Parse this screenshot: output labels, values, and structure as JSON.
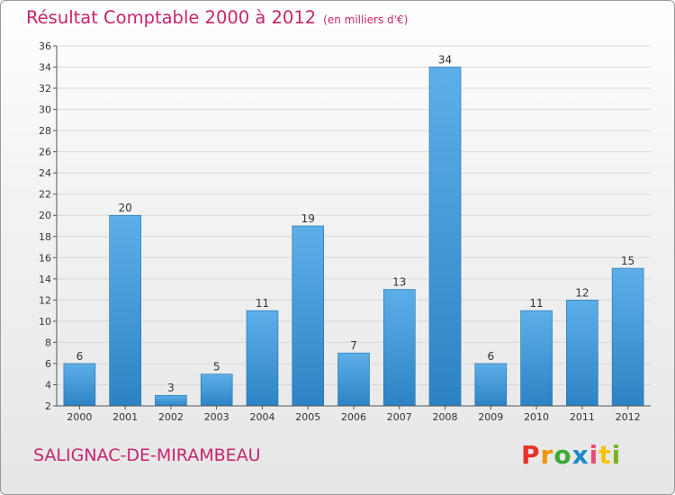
{
  "header": {
    "title": "Résultat Comptable 2000 à 2012",
    "unit_note": "(en milliers d'€)"
  },
  "footer": {
    "town": "SALIGNAC-DE-MIRAMBEAU",
    "logo": "Proxiti",
    "logo_colors": [
      "#e8312a",
      "#f39200",
      "#3aaa35",
      "#1e88c8",
      "#e94e77",
      "#f6c300",
      "#7ab51d"
    ]
  },
  "colors": {
    "bar_top": "#5dafe8",
    "bar_bottom": "#2c83c4",
    "bar_edge": "#1f6fa8",
    "grid": "#d8d8d8",
    "axis": "#555555",
    "title": "#c8246e"
  },
  "chart_data": {
    "type": "bar",
    "categories": [
      "2000",
      "2001",
      "2002",
      "2003",
      "2004",
      "2005",
      "2006",
      "2007",
      "2008",
      "2009",
      "2010",
      "2011",
      "2012"
    ],
    "values": [
      6,
      20,
      3,
      5,
      11,
      19,
      7,
      13,
      34,
      6,
      11,
      12,
      15
    ],
    "data_labels": [
      "6",
      "20",
      "3",
      "5",
      "11",
      "19",
      "7",
      "13",
      "34",
      "6",
      "11",
      "12",
      "15"
    ],
    "ylim": [
      2,
      36
    ],
    "yticks": [
      "2",
      "4",
      "6",
      "8",
      "10",
      "12",
      "14",
      "16",
      "18",
      "20",
      "22",
      "24",
      "26",
      "28",
      "30",
      "32",
      "34",
      "36"
    ],
    "grid": true,
    "legend": "none"
  }
}
